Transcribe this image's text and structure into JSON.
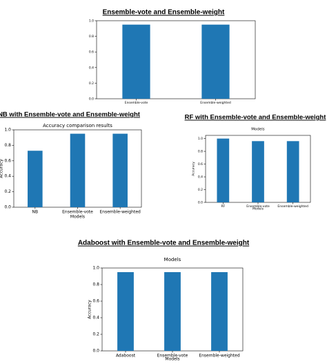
{
  "chart_data": [
    {
      "type": "bar",
      "heading": "Ensemble-vote and Ensemble-weight",
      "categories": [
        "Ensemble-vote",
        "Ensemble-weighted"
      ],
      "values": [
        0.95,
        0.95
      ],
      "color": "#1f77b4",
      "ylim": [
        0,
        1.0
      ],
      "yticks": [
        {
          "value": 0,
          "label": "0.0"
        },
        0.2,
        0.4,
        0.6,
        0.8,
        {
          "value": 1,
          "label": "1.0"
        }
      ]
    },
    {
      "type": "bar",
      "heading": "NB with Ensemble-vote and Ensemble-weight",
      "title": "Accuracy comparison results",
      "x_label": "Models",
      "y_label": "Accuracy",
      "categories": [
        "NB",
        "Ensemble-vote",
        "Ensemble-weighted"
      ],
      "values": [
        0.73,
        0.95,
        0.95
      ],
      "color": "#1f77b4",
      "ylim": [
        0,
        1.0
      ],
      "yticks": [
        {
          "value": 0,
          "label": "0.0"
        },
        0.2,
        0.4,
        0.6,
        0.8,
        {
          "value": 1,
          "label": "1.0"
        }
      ]
    },
    {
      "type": "bar",
      "heading": "RF with Ensemble-vote and Ensemble-weight",
      "title": "Models",
      "x_label": "Models",
      "y_label": "Accuracy",
      "categories": [
        "RF",
        "Ensemble-vote",
        "Ensemble-weighted"
      ],
      "values": [
        1.0,
        0.96,
        0.96
      ],
      "color": "#1f77b4",
      "ylim": [
        0,
        1.05
      ],
      "yticks": [
        {
          "value": 0,
          "label": "0.0"
        },
        0.2,
        0.4,
        0.6,
        0.8,
        {
          "value": 1,
          "label": "1.0"
        }
      ]
    },
    {
      "type": "bar",
      "heading": "Adaboost with Ensemble-vote and Ensemble-weight",
      "title": "Models",
      "x_label": "Models",
      "y_label": "Accuracy",
      "categories": [
        "Adaboost",
        "Ensemble-vote",
        "Ensemble-weighted"
      ],
      "values": [
        0.95,
        0.95,
        0.95
      ],
      "color": "#1f77b4",
      "ylim": [
        0,
        1.0
      ],
      "yticks": [
        {
          "value": 0,
          "label": "0.0"
        },
        0.2,
        0.4,
        0.6,
        0.8,
        {
          "value": 1,
          "label": "1.0"
        }
      ]
    }
  ]
}
